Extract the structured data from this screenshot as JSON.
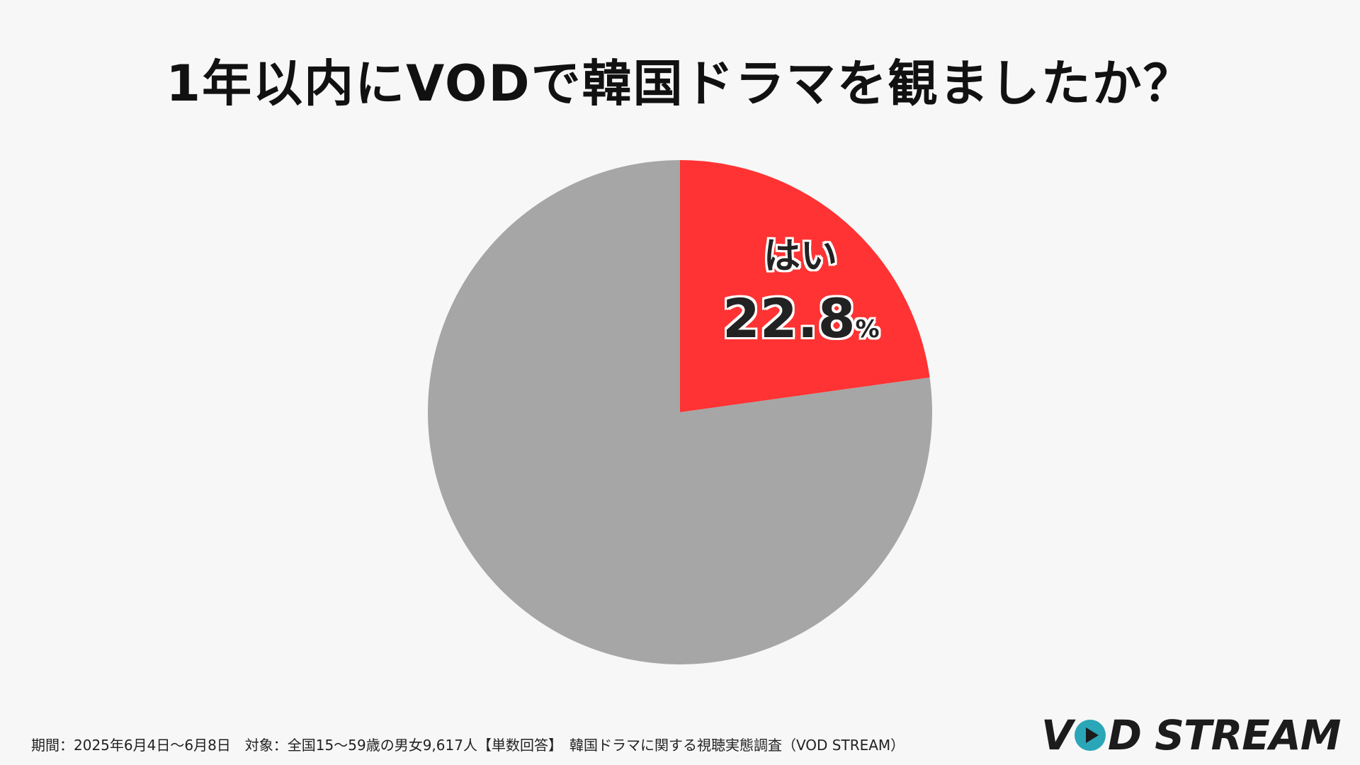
{
  "chart_data": {
    "type": "pie",
    "title": "1年以内にVODで韓国ドラマを観ましたか？",
    "slices": [
      {
        "label": "はい",
        "value": 22.8,
        "value_text": "22.8",
        "unit": "%",
        "color": "#ff3333"
      },
      {
        "label": "",
        "value": 77.2,
        "color": "#a6a6a6"
      }
    ],
    "start": "12 o'clock",
    "direction": "clockwise"
  },
  "footnote": "期間：2025年6月4日〜6月8日　対象：全国15〜59歳の男女9,617人【単数回答】　韓国ドラマに関する視聴実態調査（VOD STREAM）",
  "logo": {
    "text": "VOD STREAM",
    "icon": "play-icon",
    "colors": {
      "text": "#1c1c1c",
      "accent": "#2aa6b8"
    }
  },
  "colors": {
    "background": "#f7f7f7"
  }
}
